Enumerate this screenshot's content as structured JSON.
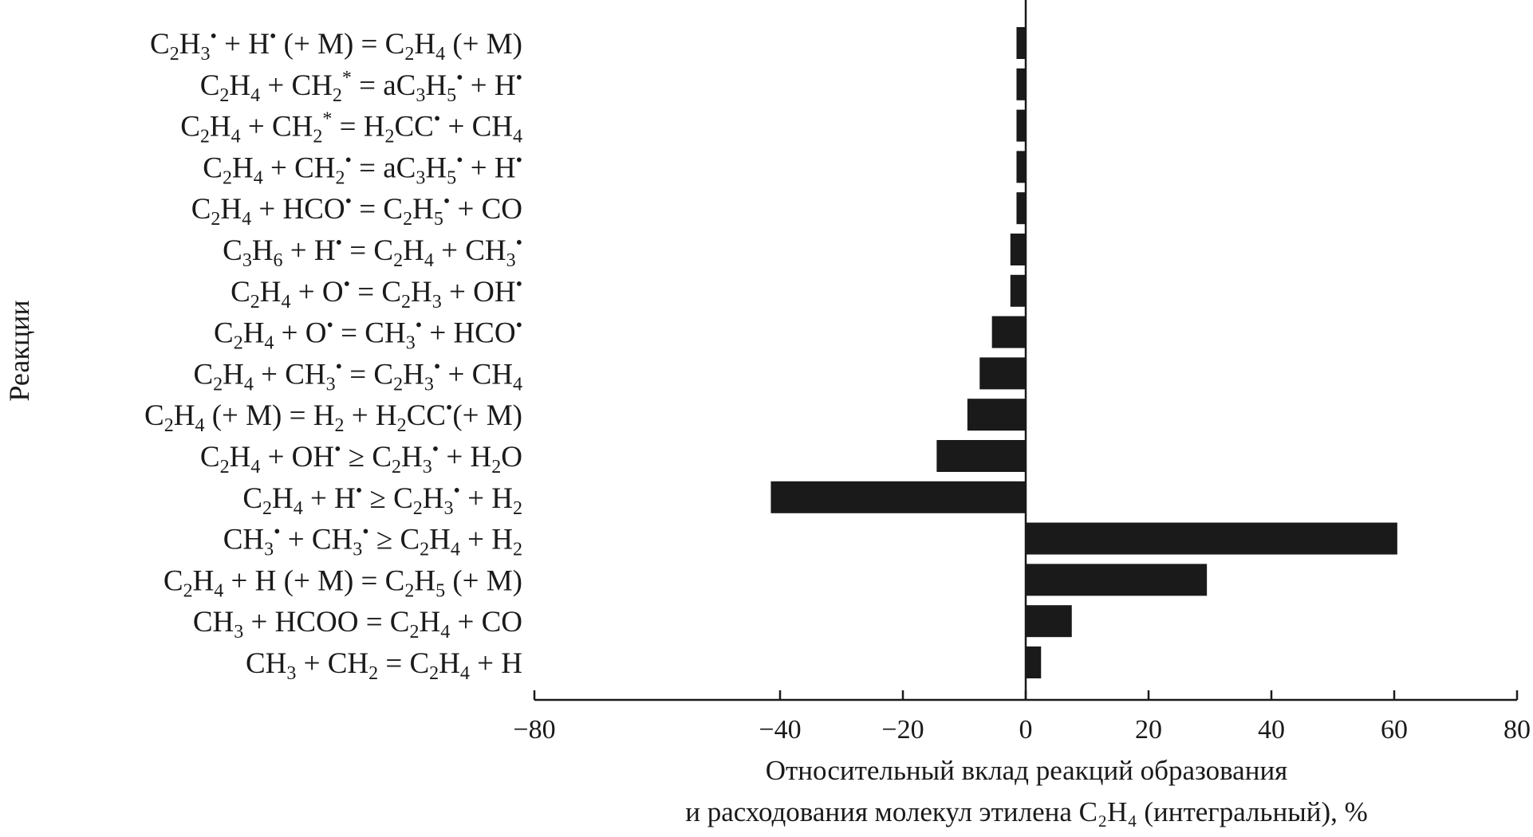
{
  "chart_data": {
    "type": "bar",
    "orientation": "horizontal",
    "ylabel": "Реакции",
    "xlabel_line1": "Относительный вклад реакций образования",
    "xlabel_line2": "и расходования молекул этилена C₂H₄ (интегральный), %",
    "xlim": [
      -80,
      80
    ],
    "xticks": [
      -80,
      -40,
      -20,
      0,
      20,
      40,
      60,
      80
    ],
    "xtick_labels": [
      "−80",
      "−40",
      "−20",
      "0",
      "20",
      "40",
      "60",
      "80"
    ],
    "grid": false,
    "bar_color": "#1a1a1a",
    "categories": [
      "C₂H₃• + H• (+ M) = C₂H₄ (+ M)",
      "C₂H₄ + CH₂* = aC₃H₅• + H•",
      "C₂H₄ + CH₂* = H₂CC• + CH₄",
      "C₂H₄ + CH₂• = aC₃H₅• + H•",
      "C₂H₄ + HCO• = C₂H₅• + CO",
      "C₃H₆ + H• = C₂H₄ + CH₃•",
      "C₂H₄ + O• = C₂H₃ + OH•",
      "C₂H₄ + O• = CH₃• + HCO•",
      "C₂H₄ + CH₃• = C₂H₃• + CH₄",
      "C₂H₄ (+ M) = H₂ + H₂CC•(+ M)",
      "C₂H₄ + OH• ≥ C₂H₃• + H₂O",
      "C₂H₄ + H• ≥ C₂H₃• + H₂",
      "CH₃• + CH₃• ≥ C₂H₄ + H₂",
      "C₂H₄ + H (+ M) = C₂H₅ (+ M)",
      "CH₃ + HCOO = C₂H₄ + CO",
      "CH₃ + CH₂ = C₂H₄ + H"
    ],
    "values": [
      -1.5,
      -1.5,
      -1.5,
      -1.5,
      -1.5,
      -2.5,
      -2.5,
      -5.5,
      -7.5,
      -9.5,
      -14.5,
      -41.5,
      60.5,
      29.5,
      7.5,
      2.5
    ]
  }
}
